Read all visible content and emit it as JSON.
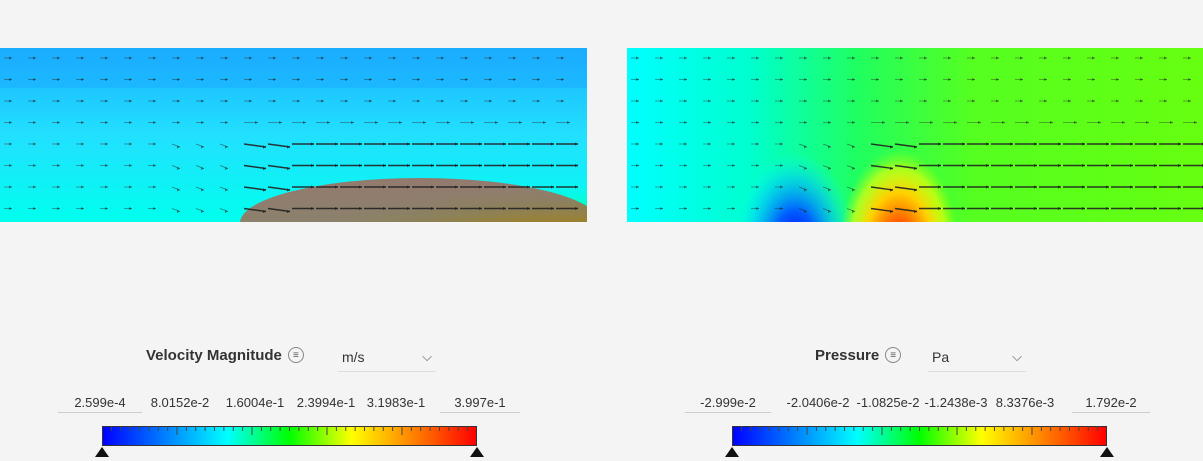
{
  "velocity": {
    "title": "Velocity Magnitude",
    "unit": "m/s",
    "min": "2.599e-4",
    "max": "3.997e-1",
    "ticks": [
      "8.0152e-2",
      "1.6004e-1",
      "2.3994e-1",
      "3.1983e-1"
    ]
  },
  "pressure": {
    "title": "Pressure",
    "unit": "Pa",
    "min": "-2.999e-2",
    "max": "1.792e-2",
    "ticks": [
      "-2.0406e-2",
      "-1.0825e-2",
      "-1.2438e-3",
      "8.3376e-3"
    ]
  },
  "icons": {
    "menu": "menu-lines-icon",
    "dropdown": "chevron-down-icon",
    "handle": "triangle-handle-icon"
  },
  "colormap": [
    "#0000ff",
    "#0080ff",
    "#00ffff",
    "#00ff00",
    "#ffff00",
    "#ff8000",
    "#ff0000"
  ]
}
